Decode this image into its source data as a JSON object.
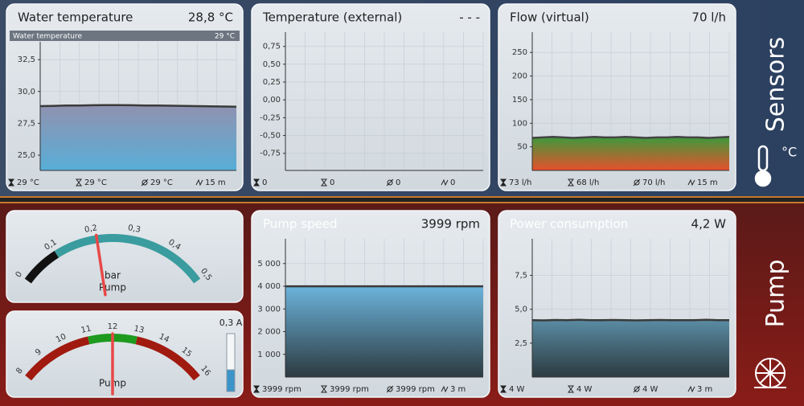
{
  "sections": [
    {
      "label": "Sensors",
      "unit": "°C"
    },
    {
      "label": "Pump"
    }
  ],
  "chart_data": [
    {
      "type": "area",
      "title": "Water temperature",
      "reading": "28,8 °C",
      "legend": {
        "name": "Water temperature",
        "reading": "29 °C"
      },
      "values": [
        28.85,
        28.87,
        28.9,
        28.9,
        28.92,
        28.93,
        28.93,
        28.92,
        28.9,
        28.9,
        28.88,
        28.86,
        28.85,
        28.83,
        28.82,
        28.8
      ],
      "color": "#3a3a3a",
      "fill": [
        "#9092b0",
        "#58aed8"
      ],
      "ylim": [
        23.8,
        33.9
      ],
      "yticks": [
        {
          "value": 25,
          "label": "25,0"
        },
        {
          "value": 27.5,
          "label": "27,5"
        },
        {
          "value": 30,
          "label": "30,0"
        },
        {
          "value": 32.5,
          "label": "32,5"
        }
      ],
      "grid": true,
      "footer": [
        "29 °C",
        "29 °C",
        "29 °C",
        "15 m"
      ]
    },
    {
      "type": "area",
      "title": "Temperature (external)",
      "reading": "- - -",
      "ylim": [
        -0.99,
        0.95
      ],
      "yticks": [
        {
          "value": -0.75,
          "label": "-0,75"
        },
        {
          "value": -0.5,
          "label": "-0,50"
        },
        {
          "value": -0.25,
          "label": "-0,25"
        },
        {
          "value": 0,
          "label": "0,00"
        },
        {
          "value": 0.25,
          "label": "0,25"
        },
        {
          "value": 0.5,
          "label": "0,50"
        },
        {
          "value": 0.75,
          "label": "0,75"
        }
      ],
      "grid": true,
      "footer": [
        "0",
        "0",
        "0",
        "0"
      ]
    },
    {
      "type": "area",
      "title": "Flow (virtual)",
      "reading": "70 l/h",
      "values": [
        69,
        70,
        71,
        70,
        69,
        70,
        71,
        70,
        70,
        71,
        70,
        69,
        70,
        70,
        71,
        70,
        70,
        69,
        70,
        71
      ],
      "color": "#444444",
      "fill": [
        "#3c9a3c",
        "#e8502c"
      ],
      "ylim": [
        0,
        293
      ],
      "yticks": [
        50,
        100,
        150,
        200,
        250
      ],
      "grid": true,
      "footer": [
        "73 l/h",
        "68 l/h",
        "70 l/h",
        "15 m"
      ]
    },
    {
      "type": "area",
      "title": "Pump speed",
      "reading": "3999 rpm",
      "values": [
        3999,
        3999,
        3999,
        3999,
        3999,
        3999,
        3999,
        3999,
        3999,
        3999
      ],
      "color": "#3a3a3a",
      "fill": [
        "#6cb4dc",
        "#2c3a40"
      ],
      "ylim": [
        0,
        6090
      ],
      "yticks": [
        {
          "value": 1000,
          "label": "1 000"
        },
        {
          "value": 2000,
          "label": "2 000"
        },
        {
          "value": 3000,
          "label": "3 000"
        },
        {
          "value": 4000,
          "label": "4 000"
        },
        {
          "value": 5000,
          "label": "5 000"
        }
      ],
      "grid": true,
      "footer": [
        "3999 rpm",
        "3999 rpm",
        "3999 rpm",
        "3 m"
      ]
    },
    {
      "type": "area",
      "title": "Power consumption",
      "reading": "4,2 W",
      "values": [
        4.2,
        4.18,
        4.21,
        4.2,
        4.22,
        4.19,
        4.2,
        4.21,
        4.2,
        4.18,
        4.2,
        4.21,
        4.2,
        4.19,
        4.2,
        4.22,
        4.2,
        4.2
      ],
      "color": "#3a3a3a",
      "fill": [
        "#5a8ca4",
        "#2c3a40"
      ],
      "ylim": [
        0,
        10.2
      ],
      "yticks": [
        {
          "value": 2.5,
          "label": "2,5"
        },
        {
          "value": 5,
          "label": "5,0"
        },
        {
          "value": 7.5,
          "label": "7,5"
        }
      ],
      "grid": true,
      "footer": [
        "4 W",
        "4 W",
        "4 W",
        "3 m"
      ]
    }
  ],
  "gauges": [
    {
      "unit": "bar",
      "name": "Pump",
      "value": 0.21,
      "range": [
        0,
        0.5
      ],
      "ticks": [
        0,
        {
          "value": 0.1,
          "label": "0,1"
        },
        {
          "value": 0.2,
          "label": "0,2"
        },
        {
          "value": 0.3,
          "label": "0,3"
        },
        {
          "value": 0.4,
          "label": "0,4"
        },
        {
          "value": 0.5,
          "label": "0,5"
        }
      ],
      "bands": [
        {
          "from": 0,
          "to": 0.1,
          "color": "#111111"
        },
        {
          "from": 0.1,
          "to": 0.5,
          "color": "#3a9c9e"
        }
      ]
    },
    {
      "name": "Pump",
      "value": 12,
      "range": [
        8,
        16
      ],
      "ticks": [
        8,
        9,
        10,
        11,
        12,
        13,
        14,
        15,
        16
      ],
      "bands": [
        {
          "from": 8,
          "to": 11,
          "color": "#a01a10"
        },
        {
          "from": 11,
          "to": 13,
          "color": "#1e9a1e"
        },
        {
          "from": 13,
          "to": 16,
          "color": "#a01a10"
        }
      ],
      "level": {
        "label": "0,3 A",
        "value": 0.3,
        "max": 0.8
      }
    }
  ]
}
